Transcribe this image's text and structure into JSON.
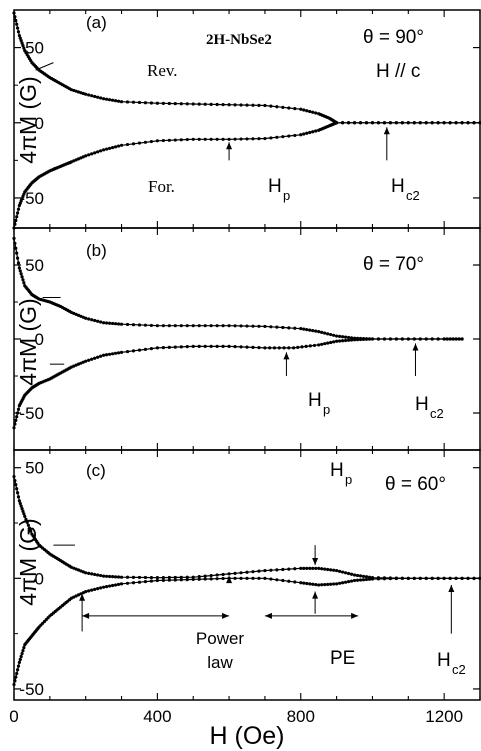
{
  "chart_data": [
    {
      "panel": "(a)",
      "type": "line",
      "material": "2H-NbSe2",
      "angle_label": "θ = 90°",
      "field_dir": "H // c",
      "ylabel": "4πM (G)",
      "xlim": [
        0,
        1300
      ],
      "ylim": [
        -70,
        75
      ],
      "yticks": [
        50,
        0,
        -50
      ],
      "series": [
        {
          "name": "Rev.",
          "x": [
            0,
            15,
            30,
            50,
            70,
            100,
            130,
            160,
            200,
            250,
            300,
            400,
            500,
            600,
            700,
            800,
            850,
            880,
            900,
            1000,
            1100,
            1200,
            1300
          ],
          "y": [
            73,
            58,
            48,
            40,
            35,
            30,
            26,
            22,
            19,
            16,
            14,
            13,
            12.5,
            12,
            11.5,
            9,
            6,
            3,
            0,
            0,
            0,
            0,
            0
          ]
        },
        {
          "name": "For.",
          "x": [
            0,
            15,
            30,
            50,
            70,
            100,
            130,
            160,
            200,
            250,
            300,
            400,
            500,
            600,
            700,
            800,
            850,
            880,
            900,
            1000,
            1100,
            1200,
            1300
          ],
          "y": [
            -70,
            -55,
            -46,
            -40,
            -36,
            -32,
            -29,
            -26,
            -22,
            -18,
            -15,
            -12,
            -11,
            -11,
            -10.5,
            -8,
            -5,
            -2,
            0,
            0,
            0,
            0,
            0
          ]
        }
      ],
      "annotations": [
        {
          "text": "Rev.",
          "x": 90,
          "y": 35
        },
        {
          "text": "For.",
          "x": 160,
          "y": -28
        },
        {
          "text": "Hp",
          "x": 600,
          "y": -5
        },
        {
          "text": "Hc2",
          "x": 1040,
          "y": 0
        }
      ]
    },
    {
      "panel": "(b)",
      "type": "line",
      "angle_label": "θ = 70°",
      "ylabel": "4πM (G)",
      "xlim": [
        0,
        1300
      ],
      "ylim": [
        -75,
        75
      ],
      "yticks": [
        50,
        0,
        -50
      ],
      "series": [
        {
          "name": "",
          "x": [
            0,
            15,
            30,
            50,
            70,
            100,
            130,
            160,
            200,
            250,
            300,
            400,
            500,
            600,
            700,
            800,
            850,
            900,
            950,
            1000,
            1100,
            1200,
            1250
          ],
          "y": [
            68,
            48,
            36,
            30,
            27,
            25,
            22,
            18,
            14,
            11,
            10,
            9,
            9,
            9,
            8.5,
            7,
            5,
            2,
            0.5,
            0,
            0,
            0,
            0
          ]
        },
        {
          "name": "",
          "x": [
            0,
            15,
            30,
            50,
            70,
            100,
            130,
            160,
            200,
            250,
            300,
            400,
            500,
            600,
            700,
            780,
            850,
            900,
            950,
            1000,
            1100,
            1200,
            1250
          ],
          "y": [
            -60,
            -45,
            -38,
            -33,
            -30,
            -27,
            -23,
            -19,
            -15,
            -11,
            -9,
            -6,
            -5,
            -5,
            -6,
            -6,
            -4,
            -1.5,
            -0.5,
            0,
            0,
            0,
            0
          ]
        }
      ],
      "annotations": [
        {
          "text": "Hp",
          "x": 760,
          "y": -8
        },
        {
          "text": "Hc2",
          "x": 1120,
          "y": -3
        }
      ]
    },
    {
      "panel": "(c)",
      "type": "line",
      "angle_label": "θ = 60°",
      "ylabel": "4πM (G)",
      "xlabel": "H (Oe)",
      "xlim": [
        0,
        1300
      ],
      "ylim": [
        -55,
        58
      ],
      "xticks": [
        0,
        400,
        800,
        1200
      ],
      "yticks": [
        50,
        0,
        -50
      ],
      "series": [
        {
          "name": "",
          "x": [
            0,
            15,
            30,
            50,
            70,
            100,
            130,
            160,
            200,
            250,
            300,
            400,
            500,
            600,
            700,
            800,
            850,
            900,
            950,
            1000,
            1100,
            1200,
            1300
          ],
          "y": [
            46,
            35,
            28,
            20,
            15,
            11,
            8,
            5,
            2.5,
            1,
            0.5,
            0.3,
            0.5,
            2,
            3.5,
            4.5,
            4.5,
            3.5,
            1.5,
            0.3,
            0,
            0,
            0
          ]
        },
        {
          "name": "",
          "x": [
            0,
            15,
            30,
            50,
            70,
            100,
            130,
            160,
            200,
            250,
            300,
            400,
            500,
            600,
            700,
            800,
            850,
            900,
            950,
            1000,
            1100,
            1200,
            1300
          ],
          "y": [
            -48,
            -38,
            -30,
            -26,
            -22,
            -17,
            -13,
            -9,
            -6,
            -4,
            -2.5,
            -1,
            -0.5,
            0,
            0,
            -2,
            -3,
            -2.5,
            -1,
            -0.3,
            0,
            0,
            0
          ]
        }
      ],
      "annotations": [
        {
          "text": "Hp",
          "x": 840,
          "y": 8
        },
        {
          "text": "Power law",
          "x": 400,
          "y": -28
        },
        {
          "text": "PE",
          "x": 840,
          "y": -26
        },
        {
          "text": "Hc2",
          "x": 1220,
          "y": -30
        }
      ]
    }
  ]
}
